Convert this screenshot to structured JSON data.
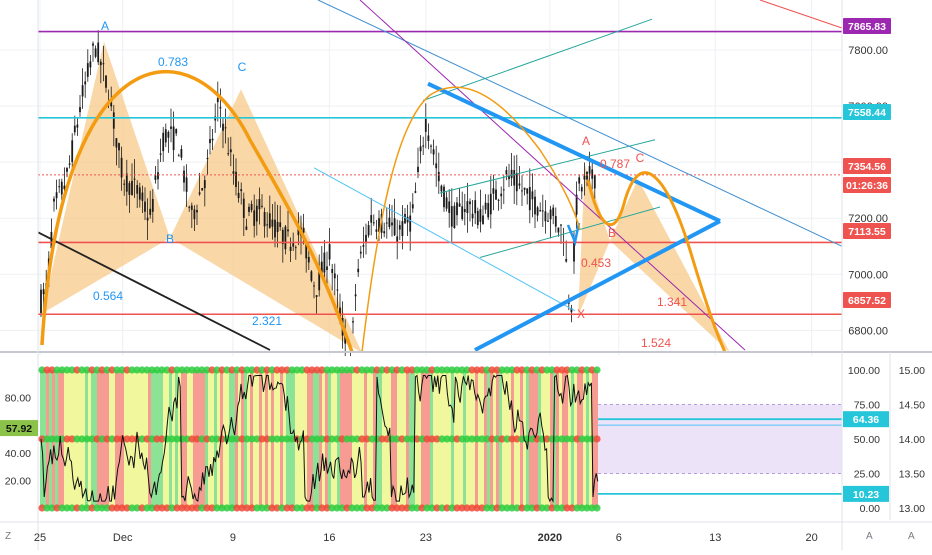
{
  "chart_data": [
    {
      "type": "line",
      "description_panel": "price",
      "y_ticks": [
        7800.0,
        7600.0,
        7400.0,
        7200.0,
        7000.0,
        6800.0
      ],
      "ylim": [
        6730,
        7950
      ],
      "x_ticks": [
        "25",
        "Dec",
        "9",
        "16",
        "23",
        "2020",
        "6",
        "13",
        "20"
      ],
      "x_tick_days": [
        0,
        6,
        14,
        21,
        28,
        37,
        42,
        49,
        56
      ],
      "price_labels": [
        {
          "value": "7865.83",
          "color": "#9c27b0"
        },
        {
          "value": "7558.44",
          "color": "#26c6da"
        },
        {
          "value": "7354.56",
          "color": "#ef5350"
        },
        {
          "value": "01:26:36",
          "color": "#ef5350"
        },
        {
          "value": "7113.55",
          "color": "#ef5350"
        },
        {
          "value": "6857.52",
          "color": "#ef5350"
        }
      ],
      "horizontal_levels": [
        {
          "value": 7865.83,
          "color": "#9c27b0"
        },
        {
          "value": 7558.44,
          "color": "#26c6da"
        },
        {
          "value": 7354.56,
          "color": "#ef5350",
          "dotted": true
        },
        {
          "value": 7113.55,
          "color": "#ef5350"
        },
        {
          "value": 6857.52,
          "color": "#ef5350"
        }
      ],
      "harmonic_labels": [
        {
          "text": "A",
          "color": "#2196f3"
        },
        {
          "text": "0.783",
          "color": "#2196f3"
        },
        {
          "text": "C",
          "color": "#2196f3"
        },
        {
          "text": "B",
          "color": "#2196f3"
        },
        {
          "text": "0.564",
          "color": "#2196f3"
        },
        {
          "text": "2.321",
          "color": "#2196f3"
        },
        {
          "text": "A",
          "color": "#ef5350"
        },
        {
          "text": "0.787",
          "color": "#ef5350"
        },
        {
          "text": "C",
          "color": "#ef5350"
        },
        {
          "text": "B",
          "color": "#ef5350"
        },
        {
          "text": "0.453",
          "color": "#ef5350"
        },
        {
          "text": "X",
          "color": "#ef5350"
        },
        {
          "text": "1.341",
          "color": "#ef5350"
        },
        {
          "text": "1.524",
          "color": "#ef5350"
        }
      ]
    },
    {
      "type": "line",
      "description_panel": "oscillator",
      "left_ticks": [
        80.0,
        60.0,
        40.0,
        20.0
      ],
      "left_current": "57.92",
      "right_ticks_a": [
        100.0,
        75.0,
        50.0,
        25.0,
        0.0
      ],
      "right_ticks_b": [
        15.0,
        14.5,
        14.0,
        13.5,
        13.0
      ],
      "levels": [
        {
          "value": "64.36",
          "color": "#26c6da"
        },
        {
          "value": "10.23",
          "color": "#26c6da"
        }
      ],
      "ylim": [
        0,
        100
      ]
    }
  ],
  "ui": {
    "corner_left": "Z",
    "corner_right": "A",
    "scale_left": "A",
    "scale_right": "A"
  },
  "colors": {
    "candle": "#1a1a1a",
    "grid": "#eef0f3",
    "harmonic_fill": "#f7c98a",
    "arc": "#f39c12",
    "triangle": "#2196f3",
    "osc_red": "#ef4a3a",
    "osc_green": "#2ecc40",
    "osc_yellow": "#e6f14a"
  }
}
